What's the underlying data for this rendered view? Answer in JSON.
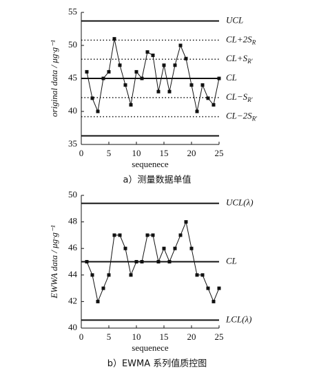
{
  "chart_data": [
    {
      "type": "line",
      "caption": "a）测量数据单值",
      "x_label": "sequenece",
      "y_label": "original data / μg·g⁻¹",
      "x": [
        1,
        2,
        3,
        4,
        5,
        6,
        7,
        8,
        9,
        10,
        11,
        12,
        13,
        14,
        15,
        16,
        17,
        18,
        19,
        20,
        21,
        22,
        23,
        24,
        25
      ],
      "values": [
        46,
        42,
        40,
        45,
        46,
        51,
        47,
        44,
        41,
        46,
        45,
        49,
        48.5,
        43,
        47,
        43,
        47,
        50,
        48,
        44,
        40,
        44,
        42,
        41,
        45
      ],
      "xlim": [
        0,
        25
      ],
      "ylim": [
        35,
        55
      ],
      "xticks": [
        0,
        5,
        10,
        15,
        20,
        25
      ],
      "yticks": [
        35,
        40,
        45,
        50,
        55
      ],
      "color": "#111111",
      "reference_lines": [
        {
          "value": 53.7,
          "label": "UCL",
          "style": "solid"
        },
        {
          "value": 50.8,
          "label": "CL+2S",
          "sub": "R",
          "style": "dotted"
        },
        {
          "value": 47.9,
          "label": "CL+S",
          "sub": "R'",
          "style": "dotted"
        },
        {
          "value": 45,
          "label": "CL",
          "style": "solid"
        },
        {
          "value": 42.1,
          "label": "CL−S",
          "sub": "R'",
          "style": "dotted"
        },
        {
          "value": 39.2,
          "label": "CL−2S",
          "sub": "R'",
          "style": "dotted"
        },
        {
          "value": 36.3,
          "style": "solid"
        }
      ]
    },
    {
      "type": "line",
      "caption": "b）EWMA 系列值质控图",
      "x_label": "sequenece",
      "y_label": "EWWA data / μg·g⁻¹",
      "x": [
        1,
        2,
        3,
        4,
        5,
        6,
        7,
        8,
        9,
        10,
        11,
        12,
        13,
        14,
        15,
        16,
        17,
        18,
        19,
        20,
        21,
        22,
        23,
        24,
        25
      ],
      "values": [
        45,
        44,
        42,
        43,
        44,
        47,
        47,
        46,
        44,
        45,
        45,
        47,
        47,
        45,
        46,
        45,
        46,
        47,
        48,
        46,
        44,
        44,
        43,
        42,
        43
      ],
      "xlim": [
        0,
        25
      ],
      "ylim": [
        40,
        50
      ],
      "xticks": [
        0,
        5,
        10,
        15,
        20,
        25
      ],
      "yticks": [
        40,
        42,
        44,
        46,
        48,
        50
      ],
      "color": "#111111",
      "reference_lines": [
        {
          "value": 49.4,
          "label": "UCL(λ)",
          "style": "solid"
        },
        {
          "value": 45,
          "label": "CL",
          "style": "solid"
        },
        {
          "value": 40.6,
          "label": "LCL(λ)",
          "style": "solid"
        }
      ]
    }
  ]
}
